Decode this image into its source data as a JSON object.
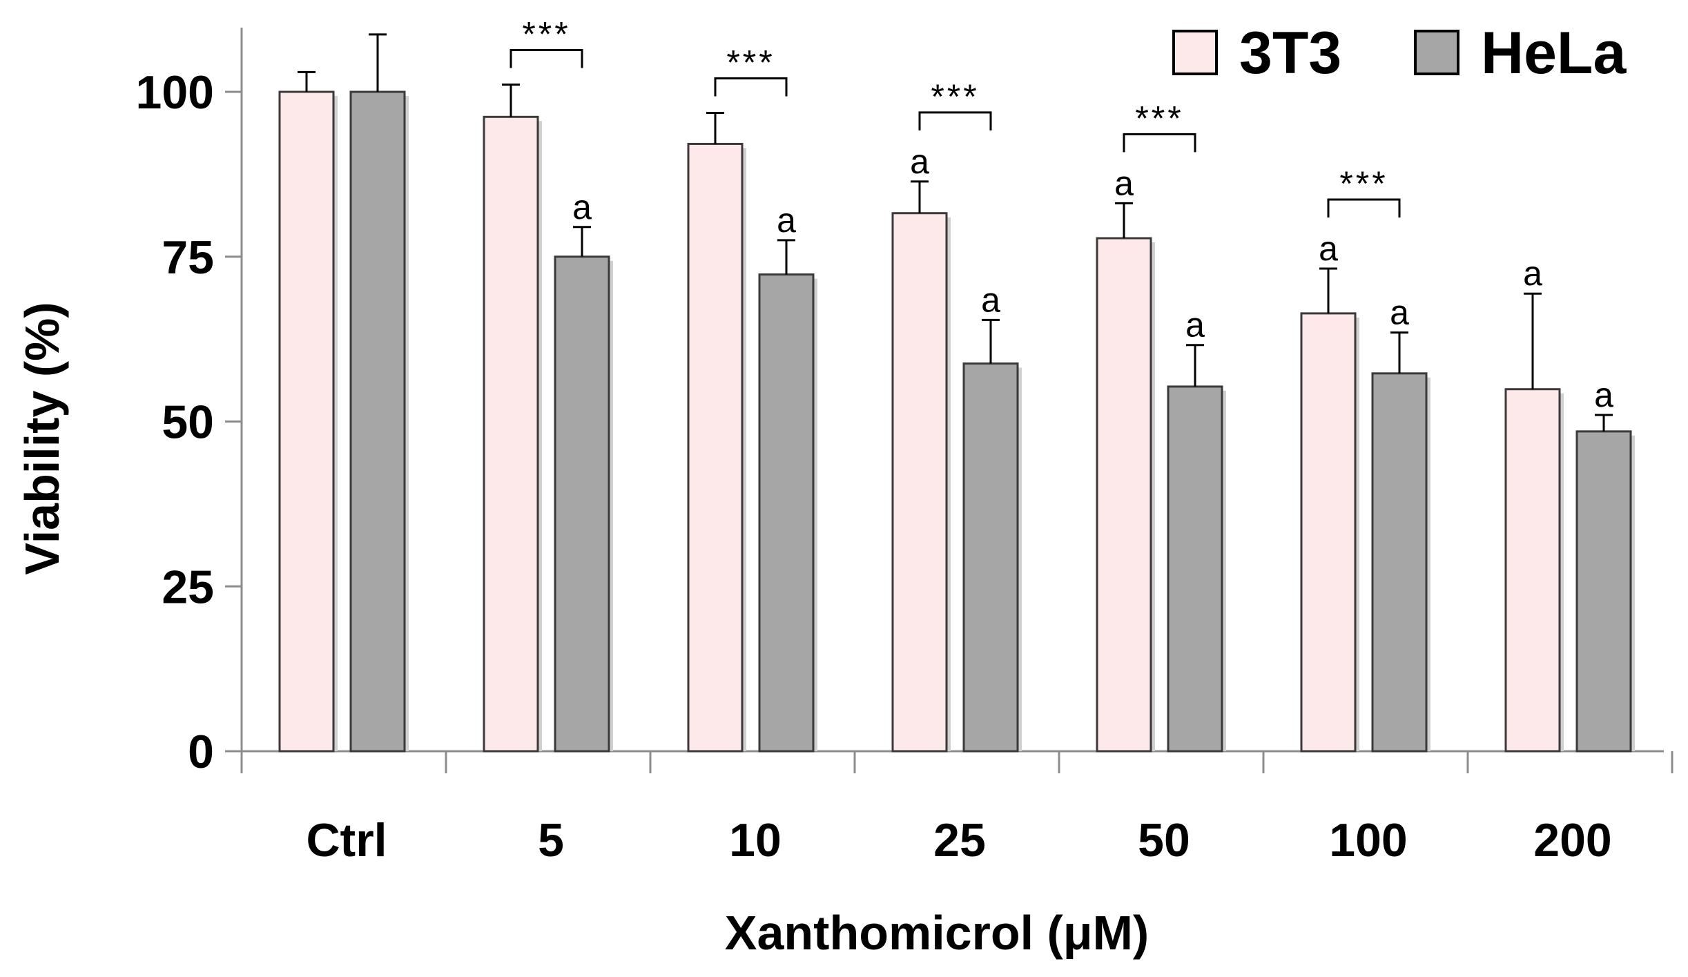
{
  "chart_data": {
    "type": "bar",
    "title": "",
    "xlabel": "Xanthomicrol (μM)",
    "ylabel": "Viability (%)",
    "ylim": [
      0,
      110
    ],
    "yticks": [
      0,
      25,
      50,
      75,
      100
    ],
    "grid": false,
    "legend_position": "top-right",
    "categories": [
      "Ctrl",
      "5",
      "10",
      "25",
      "50",
      "100",
      "200"
    ],
    "series": [
      {
        "name": "3T3",
        "color": "#fde9e9",
        "values": [
          100,
          96.2,
          92.1,
          81.6,
          77.8,
          66.4,
          54.9
        ],
        "errors": [
          3.0,
          4.9,
          4.7,
          4.8,
          5.3,
          6.8,
          14.5
        ],
        "annotations": [
          "",
          "",
          "",
          "a",
          "a",
          "a",
          "a"
        ]
      },
      {
        "name": "HeLa",
        "color": "#a6a6a6",
        "values": [
          100,
          75.0,
          72.3,
          58.8,
          55.3,
          57.3,
          48.5
        ],
        "errors": [
          8.7,
          4.5,
          5.2,
          6.6,
          6.3,
          6.2,
          2.5
        ],
        "annotations": [
          "",
          "a",
          "a",
          "a",
          "a",
          "a",
          "a"
        ]
      }
    ],
    "significance": [
      {
        "category": "5",
        "label": "***"
      },
      {
        "category": "10",
        "label": "***"
      },
      {
        "category": "25",
        "label": "***"
      },
      {
        "category": "50",
        "label": "***"
      },
      {
        "category": "100",
        "label": "***"
      }
    ]
  }
}
